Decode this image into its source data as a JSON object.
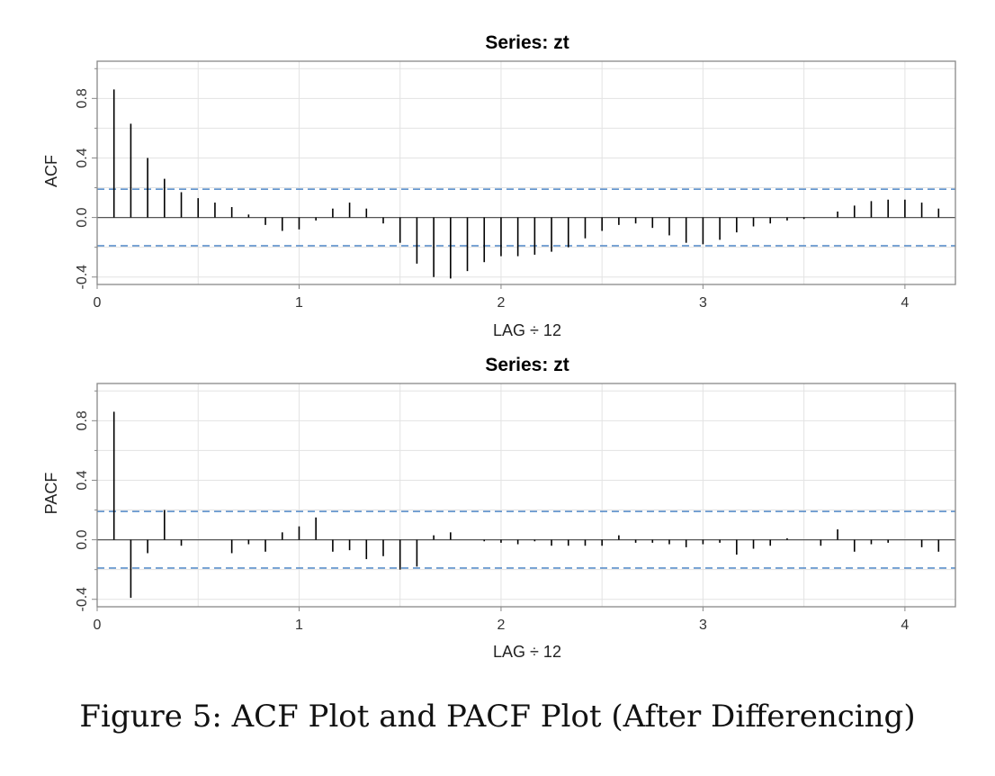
{
  "caption": "Figure 5: ACF Plot and PACF Plot (After Differencing)",
  "colors": {
    "stem": "#000000",
    "bound": "#4f86c6",
    "grid": "#e3e3e3",
    "border": "#888888",
    "zero": "#555555"
  },
  "chart_data": [
    {
      "type": "bar",
      "title": "Series:  zt",
      "xlabel": "LAG ÷ 12",
      "ylabel": "ACF",
      "xlim": [
        0,
        4.25
      ],
      "ylim": [
        -0.45,
        1.05
      ],
      "xticks": [
        0,
        1,
        2,
        3,
        4
      ],
      "yticks": [
        -0.4,
        0.0,
        0.4,
        0.8
      ],
      "ytick_labels": [
        "-0.4",
        "0.0",
        "0.4",
        "0.8"
      ],
      "grid": true,
      "confidence_bounds": [
        0.19,
        -0.19
      ],
      "x": [
        0.0833,
        0.1667,
        0.25,
        0.3333,
        0.4167,
        0.5,
        0.5833,
        0.6667,
        0.75,
        0.8333,
        0.9167,
        1.0,
        1.0833,
        1.1667,
        1.25,
        1.3333,
        1.4167,
        1.5,
        1.5833,
        1.6667,
        1.75,
        1.8333,
        1.9167,
        2.0,
        2.0833,
        2.1667,
        2.25,
        2.3333,
        2.4167,
        2.5,
        2.5833,
        2.6667,
        2.75,
        2.8333,
        2.9167,
        3.0,
        3.0833,
        3.1667,
        3.25,
        3.3333,
        3.4167,
        3.5,
        3.5833,
        3.6667,
        3.75,
        3.8333,
        3.9167,
        4.0,
        4.0833,
        4.1667
      ],
      "values": [
        0.86,
        0.63,
        0.4,
        0.26,
        0.17,
        0.13,
        0.1,
        0.07,
        0.02,
        -0.05,
        -0.09,
        -0.08,
        -0.02,
        0.06,
        0.1,
        0.06,
        -0.04,
        -0.17,
        -0.31,
        -0.4,
        -0.41,
        -0.36,
        -0.3,
        -0.26,
        -0.26,
        -0.25,
        -0.23,
        -0.2,
        -0.14,
        -0.09,
        -0.05,
        -0.04,
        -0.07,
        -0.12,
        -0.17,
        -0.18,
        -0.15,
        -0.1,
        -0.06,
        -0.04,
        -0.02,
        -0.01,
        0.0,
        0.04,
        0.08,
        0.11,
        0.12,
        0.12,
        0.1,
        0.06
      ]
    },
    {
      "type": "bar",
      "title": "Series:  zt",
      "xlabel": "LAG ÷ 12",
      "ylabel": "PACF",
      "xlim": [
        0,
        4.25
      ],
      "ylim": [
        -0.45,
        1.05
      ],
      "xticks": [
        0,
        1,
        2,
        3,
        4
      ],
      "yticks": [
        -0.4,
        0.0,
        0.4,
        0.8
      ],
      "ytick_labels": [
        "-0.4",
        "0.0",
        "0.4",
        "0.8"
      ],
      "grid": true,
      "confidence_bounds": [
        0.19,
        -0.19
      ],
      "x": [
        0.0833,
        0.1667,
        0.25,
        0.3333,
        0.4167,
        0.5,
        0.5833,
        0.6667,
        0.75,
        0.8333,
        0.9167,
        1.0,
        1.0833,
        1.1667,
        1.25,
        1.3333,
        1.4167,
        1.5,
        1.5833,
        1.6667,
        1.75,
        1.8333,
        1.9167,
        2.0,
        2.0833,
        2.1667,
        2.25,
        2.3333,
        2.4167,
        2.5,
        2.5833,
        2.6667,
        2.75,
        2.8333,
        2.9167,
        3.0,
        3.0833,
        3.1667,
        3.25,
        3.3333,
        3.4167,
        3.5,
        3.5833,
        3.6667,
        3.75,
        3.8333,
        3.9167,
        4.0,
        4.0833,
        4.1667
      ],
      "values": [
        0.86,
        -0.39,
        -0.09,
        0.2,
        -0.04,
        0.0,
        0.0,
        -0.09,
        -0.03,
        -0.08,
        0.05,
        0.09,
        0.15,
        -0.08,
        -0.07,
        -0.13,
        -0.11,
        -0.2,
        -0.18,
        0.03,
        0.05,
        0.0,
        -0.01,
        -0.02,
        -0.03,
        -0.01,
        -0.04,
        -0.04,
        -0.04,
        -0.04,
        0.03,
        -0.02,
        -0.02,
        -0.03,
        -0.05,
        -0.03,
        -0.02,
        -0.1,
        -0.06,
        -0.04,
        0.01,
        0.0,
        -0.04,
        0.07,
        -0.08,
        -0.03,
        -0.02,
        0.0,
        -0.05,
        -0.08
      ]
    }
  ]
}
